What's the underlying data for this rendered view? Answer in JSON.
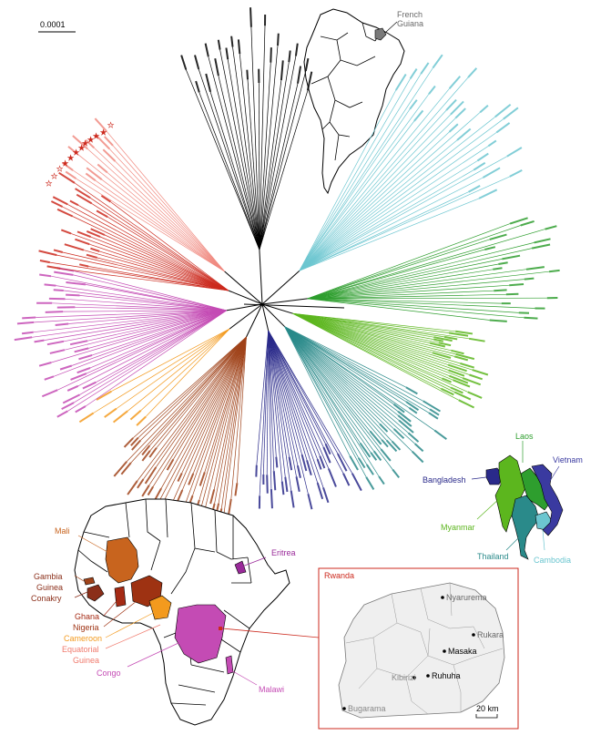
{
  "scale_bar": {
    "label": "0.0001"
  },
  "south_america": {
    "label_line1": "French",
    "label_line2": "Guiana"
  },
  "asia": {
    "laos": "Laos",
    "vietnam": "Vietnam",
    "bangladesh": "Bangladesh",
    "myanmar": "Myanmar",
    "thailand": "Thailand",
    "cambodia": "Cambodia"
  },
  "africa": {
    "mali": "Mali",
    "gambia": "Gambia",
    "guinea_conakry_1": "Guinea",
    "guinea_conakry_2": "Conakry",
    "ghana": "Ghana",
    "nigeria": "Nigeria",
    "cameroon": "Cameroon",
    "equatorial_1": "Equatorial",
    "equatorial_2": "Guinea",
    "congo": "Congo",
    "eritrea": "Eritrea",
    "malawi": "Malawi"
  },
  "rwanda_inset": {
    "title": "Rwanda",
    "nyarurema": "Nyarurema",
    "rukara": "Rukara",
    "masaka": "Masaka",
    "kibirizi": "Kibirizi",
    "ruhuha": "Ruhuha",
    "bugarama": "Bugarama",
    "scale": "20 km"
  },
  "colors": {
    "south_america": "#000000",
    "french_guiana_fill": "#7a7a7a",
    "rwanda": "#cc2a1e",
    "rwanda_light": "#f08a80",
    "west_africa": "#a0431a",
    "mali": "#c8641e",
    "cameroon": "#f39a1e",
    "equatorial_guinea": "#f07b6e",
    "congo": "#c44bb4",
    "eritrea": "#9a2a9a",
    "malawi": "#c44bb4",
    "bangladesh": "#2a2a8a",
    "myanmar": "#5cb61e",
    "laos": "#2e9e2e",
    "thailand": "#2a8a8a",
    "cambodia": "#6cc6d0",
    "vietnam": "#3a3aa0"
  }
}
